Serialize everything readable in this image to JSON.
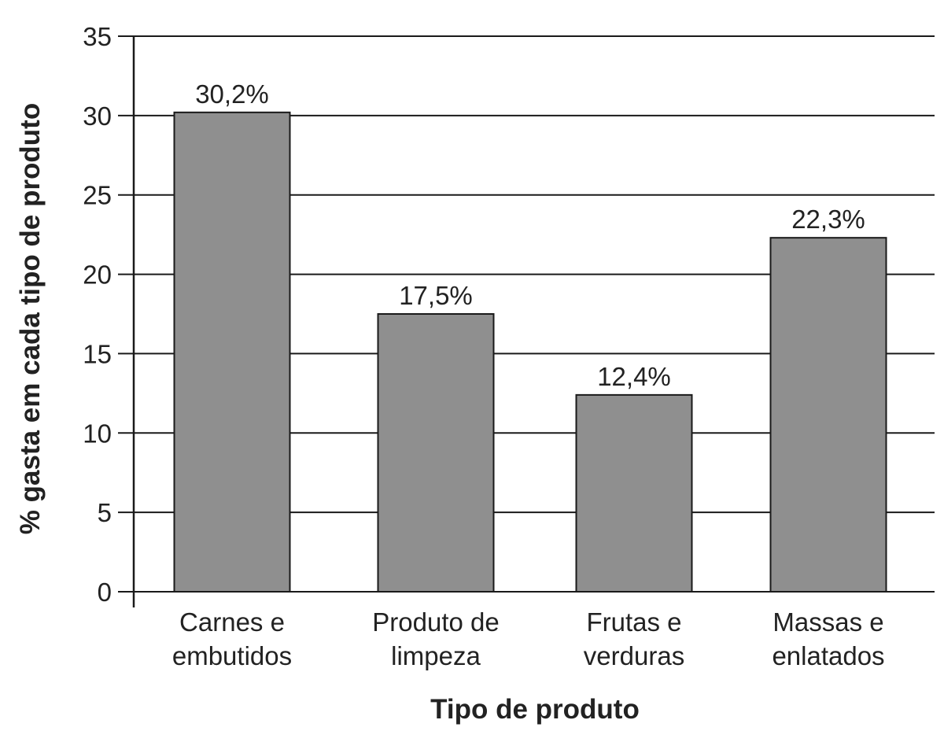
{
  "chart_data": {
    "type": "bar",
    "title": "",
    "xlabel": "Tipo de produto",
    "ylabel": "% gasta em cada tipo de produto",
    "ylim": [
      0,
      35
    ],
    "yticks": [
      "0",
      "5",
      "10",
      "15",
      "20",
      "25",
      "30",
      "35"
    ],
    "grid": true,
    "categories": [
      [
        "Carnes e",
        "embutidos"
      ],
      [
        "Produto de",
        "limpeza"
      ],
      [
        "Frutas e",
        "verduras"
      ],
      [
        "Massas e",
        "enlatados"
      ]
    ],
    "values": [
      30.2,
      17.5,
      12.4,
      22.3
    ],
    "data_labels": [
      "30,2%",
      "17,5%",
      "12,4%",
      "22,3%"
    ],
    "colors": {
      "bar": "#8f8f8f",
      "bar_edge": "#1a1a1a",
      "grid": "#1a1a1a",
      "text": "#222222"
    }
  }
}
